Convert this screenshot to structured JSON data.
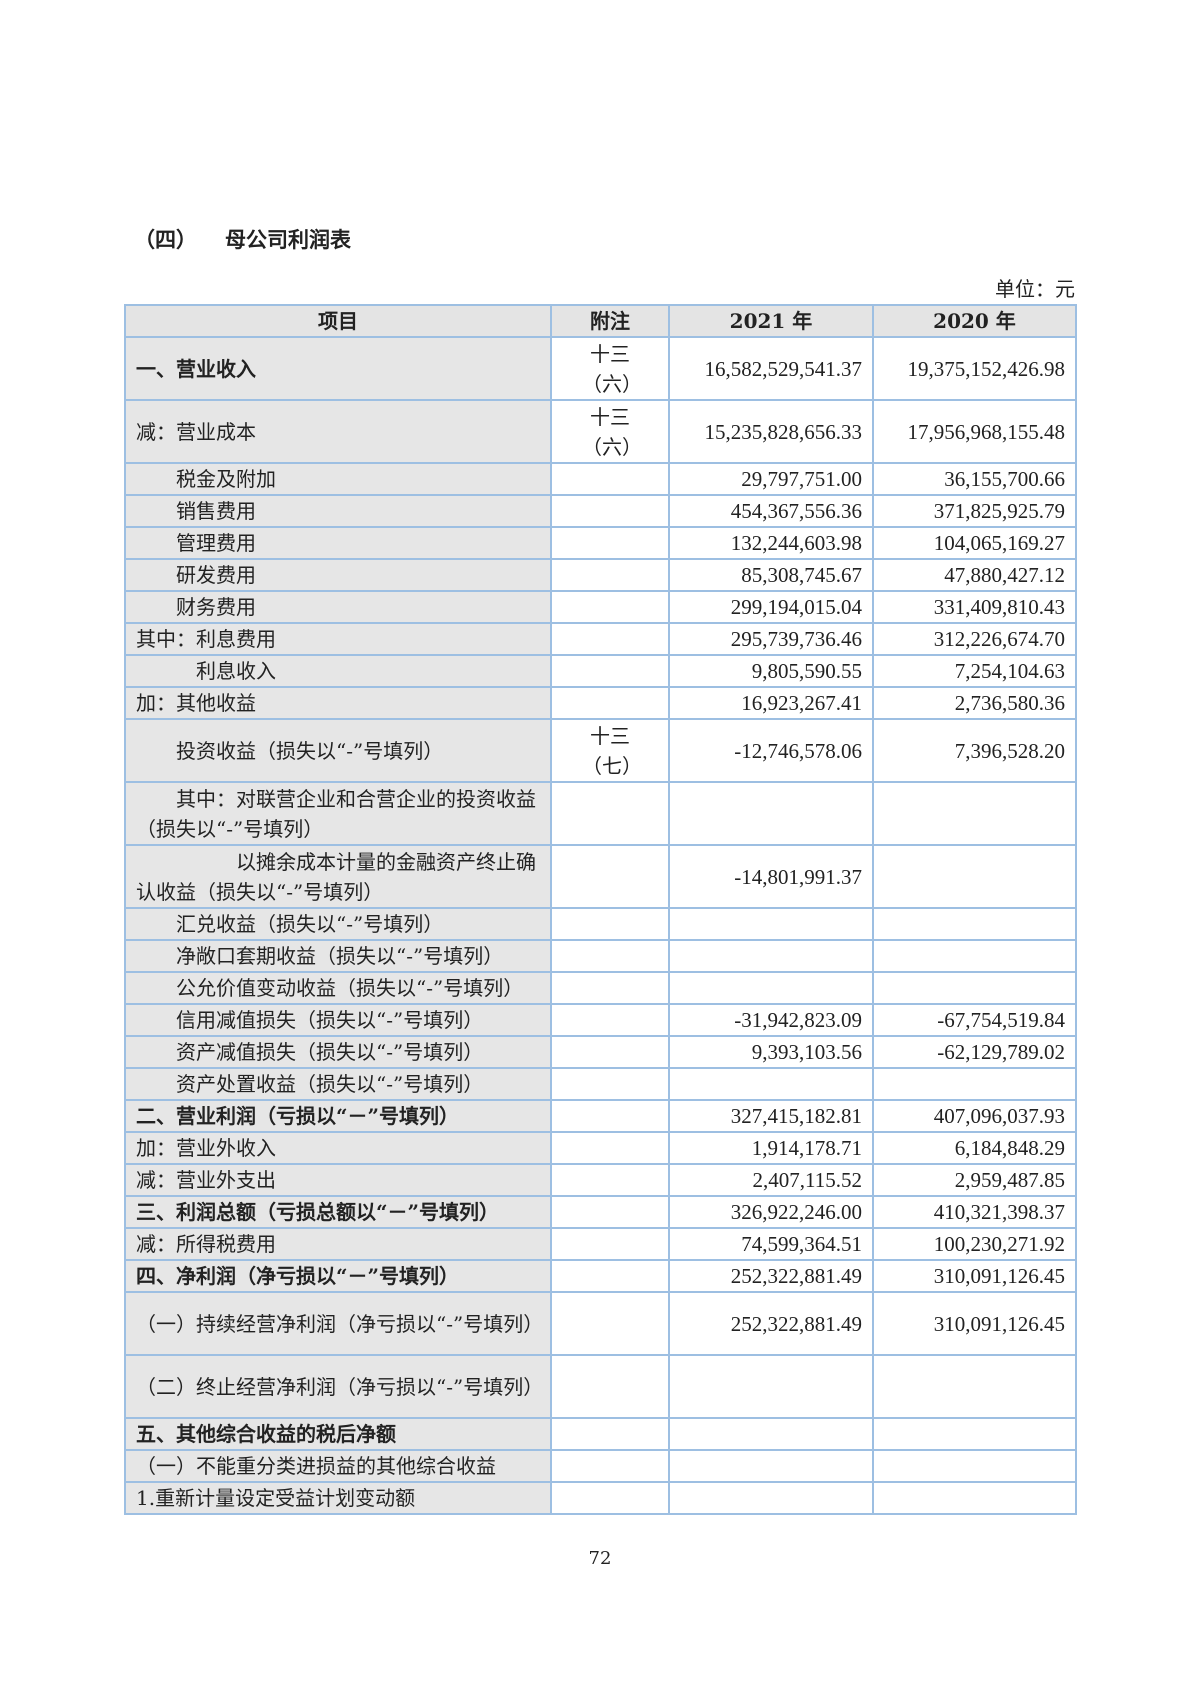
{
  "heading": {
    "number": "（四）",
    "title": "母公司利润表"
  },
  "unit": "单位：元",
  "table": {
    "headers": [
      "项目",
      "附注",
      "2021 年",
      "2020 年"
    ],
    "rows": [
      {
        "item": "一、营业收入",
        "note": "十三（六）",
        "y2021": "16,582,529,541.37",
        "y2020": "19,375,152,426.98"
      },
      {
        "item": "减：营业成本",
        "note": "十三（六）",
        "y2021": "15,235,828,656.33",
        "y2020": "17,956,968,155.48"
      },
      {
        "item": "税金及附加",
        "note": "",
        "y2021": "29,797,751.00",
        "y2020": "36,155,700.66"
      },
      {
        "item": "销售费用",
        "note": "",
        "y2021": "454,367,556.36",
        "y2020": "371,825,925.79"
      },
      {
        "item": "管理费用",
        "note": "",
        "y2021": "132,244,603.98",
        "y2020": "104,065,169.27"
      },
      {
        "item": "研发费用",
        "note": "",
        "y2021": "85,308,745.67",
        "y2020": "47,880,427.12"
      },
      {
        "item": "财务费用",
        "note": "",
        "y2021": "299,194,015.04",
        "y2020": "331,409,810.43"
      },
      {
        "item": "其中：利息费用",
        "note": "",
        "y2021": "295,739,736.46",
        "y2020": "312,226,674.70"
      },
      {
        "item": "利息收入",
        "note": "",
        "y2021": "9,805,590.55",
        "y2020": "7,254,104.63"
      },
      {
        "item": "加：其他收益",
        "note": "",
        "y2021": "16,923,267.41",
        "y2020": "2,736,580.36"
      },
      {
        "item": "投资收益（损失以“-”号填列）",
        "note": "十三（七）",
        "y2021": "-12,746,578.06",
        "y2020": "7,396,528.20"
      },
      {
        "item": "其中：对联营企业和合营企业的投资收益（损失以“-”号填列）",
        "note": "",
        "y2021": "",
        "y2020": ""
      },
      {
        "item": "以摊余成本计量的金融资产终止确认收益（损失以“-”号填列）",
        "note": "",
        "y2021": "-14,801,991.37",
        "y2020": ""
      },
      {
        "item": "汇兑收益（损失以“-”号填列）",
        "note": "",
        "y2021": "",
        "y2020": ""
      },
      {
        "item": "净敞口套期收益（损失以“-”号填列）",
        "note": "",
        "y2021": "",
        "y2020": ""
      },
      {
        "item": "公允价值变动收益（损失以“-”号填列）",
        "note": "",
        "y2021": "",
        "y2020": ""
      },
      {
        "item": "信用减值损失（损失以“-”号填列）",
        "note": "",
        "y2021": "-31,942,823.09",
        "y2020": "-67,754,519.84"
      },
      {
        "item": "资产减值损失（损失以“-”号填列）",
        "note": "",
        "y2021": "9,393,103.56",
        "y2020": "-62,129,789.02"
      },
      {
        "item": "资产处置收益（损失以“-”号填列）",
        "note": "",
        "y2021": "",
        "y2020": ""
      },
      {
        "item": "二、营业利润（亏损以“－”号填列）",
        "note": "",
        "y2021": "327,415,182.81",
        "y2020": "407,096,037.93"
      },
      {
        "item": "加：营业外收入",
        "note": "",
        "y2021": "1,914,178.71",
        "y2020": "6,184,848.29"
      },
      {
        "item": "减：营业外支出",
        "note": "",
        "y2021": "2,407,115.52",
        "y2020": "2,959,487.85"
      },
      {
        "item": "三、利润总额（亏损总额以“－”号填列）",
        "note": "",
        "y2021": "326,922,246.00",
        "y2020": "410,321,398.37"
      },
      {
        "item": "减：所得税费用",
        "note": "",
        "y2021": "74,599,364.51",
        "y2020": "100,230,271.92"
      },
      {
        "item": "四、净利润（净亏损以“－”号填列）",
        "note": "",
        "y2021": "252,322,881.49",
        "y2020": "310,091,126.45"
      },
      {
        "item": "（一）持续经营净利润（净亏损以“-”号填列）",
        "note": "",
        "y2021": "252,322,881.49",
        "y2020": "310,091,126.45"
      },
      {
        "item": "（二）终止经营净利润（净亏损以“-”号填列）",
        "note": "",
        "y2021": "",
        "y2020": ""
      },
      {
        "item": "五、其他综合收益的税后净额",
        "note": "",
        "y2021": "",
        "y2020": ""
      },
      {
        "item": "（一）不能重分类进损益的其他综合收益",
        "note": "",
        "y2021": "",
        "y2020": ""
      },
      {
        "item": "1.重新计量设定受益计划变动额",
        "note": "",
        "y2021": "",
        "y2020": ""
      }
    ]
  },
  "page_number": "72"
}
